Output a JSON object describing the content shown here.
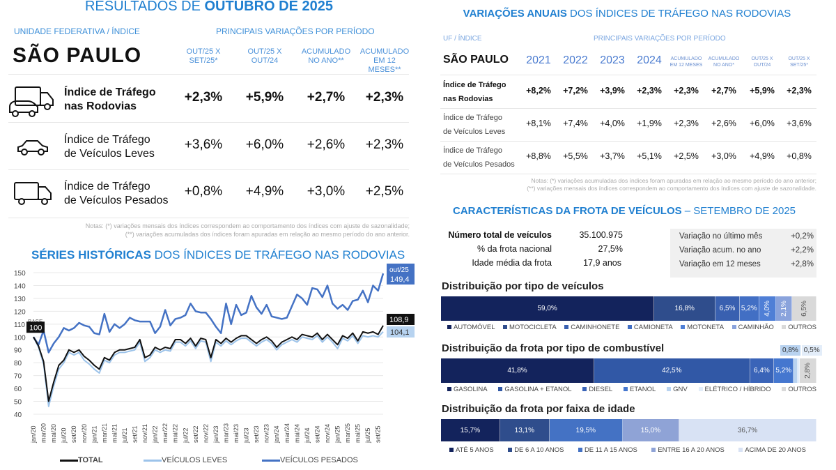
{
  "left": {
    "title_light": "RESULTADOS DE ",
    "title_bold": "OUTUBRO DE 2025",
    "header_uf": "UNIDADE FEDERATIVA / ÍNDICE",
    "header_periods": "PRINCIPAIS VARIAÇÕES POR PERÍODO",
    "state": "SÃO PAULO",
    "columns": [
      {
        "l1": "OUT/25 X",
        "l2": "SET/25*"
      },
      {
        "l1": "OUT/25 X",
        "l2": "OUT/24"
      },
      {
        "l1": "ACUMULADO",
        "l2": "NO ANO**"
      },
      {
        "l1": "ACUMULADO",
        "l2": "EM 12 MESES**"
      }
    ],
    "rows": [
      {
        "icon": "truck-car-icon",
        "l1": "Índice de Tráfego",
        "l2": "nas Rodovias",
        "values": [
          "+2,3%",
          "+5,9%",
          "+2,7%",
          "+2,3%"
        ]
      },
      {
        "icon": "car-icon",
        "l1": "Índice de Tráfego",
        "l2": "de Veículos Leves",
        "values": [
          "+3,6%",
          "+6,0%",
          "+2,6%",
          "+2,3%"
        ]
      },
      {
        "icon": "truck-icon",
        "l1": "Índice de Tráfego",
        "l2": "de Veículos Pesados",
        "values": [
          "+0,8%",
          "+4,9%",
          "+3,0%",
          "+2,5%"
        ]
      }
    ],
    "notes": [
      "Notas: (*) variações mensais dos índices correspondem ao comportamento dos índices com ajuste de sazonalidade;",
      "(**) variações acumuladas dos índices foram apuradas em relação ao mesmo período do ano anterior."
    ]
  },
  "chart_data": {
    "type": "line",
    "title_bold": "SÉRIES HISTÓRICAS",
    "title_light": " DOS ÍNDICES DE TRÁFEGO NAS RODOVIAS",
    "ylim": [
      40,
      150
    ],
    "yticks": [
      40,
      50,
      60,
      70,
      80,
      90,
      100,
      110,
      120,
      130,
      140,
      150
    ],
    "grid": true,
    "xtick_labels": [
      "jan/20",
      "mar/20",
      "mai/20",
      "jul/20",
      "set/20",
      "nov/20",
      "jan/21",
      "mar/21",
      "mai/21",
      "jul/21",
      "set/21",
      "nov/21",
      "jan/22",
      "mar/22",
      "mai/22",
      "jul/22",
      "set/22",
      "nov/22",
      "jan/23",
      "mar/23",
      "mai/23",
      "jul/23",
      "set/23",
      "nov/23",
      "jan/24",
      "mar/24",
      "mai/24",
      "jul/24",
      "set/24",
      "nov/24",
      "jan/25",
      "mar/25",
      "mai/25",
      "jul/25",
      "set/25"
    ],
    "x_range": "jan/20 – out/25 (monthly)",
    "base_label": "BASE",
    "base_value": "100",
    "end_label_pesados": "out/25",
    "end_values": {
      "pesados": "149,4",
      "total": "108,9",
      "leves": "104,1"
    },
    "legend_position": "bottom",
    "series": [
      {
        "name": "TOTAL",
        "color": "#111111",
        "values": [
          100,
          93,
          81,
          50,
          65,
          78,
          82,
          90,
          88,
          90,
          85,
          82,
          78,
          75,
          84,
          82,
          88,
          90,
          90,
          91,
          92,
          98,
          84,
          86,
          92,
          90,
          92,
          91,
          98,
          98,
          95,
          99,
          93,
          99,
          98,
          84,
          98,
          95,
          99,
          96,
          99,
          101,
          101,
          98,
          95,
          98,
          100,
          97,
          92,
          96,
          98,
          100,
          98,
          102,
          101,
          100,
          103,
          98,
          102,
          98,
          94,
          101,
          99,
          103,
          97,
          104,
          103,
          104,
          102,
          108.9
        ]
      },
      {
        "name": "VEÍCULOS LEVES",
        "color": "#9cc3ea",
        "values": [
          100,
          92,
          79,
          46,
          62,
          75,
          80,
          88,
          86,
          88,
          82,
          79,
          75,
          72,
          82,
          80,
          86,
          88,
          88,
          89,
          90,
          96,
          81,
          84,
          90,
          88,
          90,
          89,
          96,
          96,
          93,
          97,
          91,
          97,
          96,
          81,
          96,
          93,
          97,
          94,
          97,
          99,
          99,
          96,
          93,
          96,
          98,
          95,
          90,
          94,
          96,
          98,
          96,
          100,
          99,
          98,
          101,
          96,
          100,
          96,
          91,
          99,
          97,
          101,
          95,
          101,
          100,
          101,
          100,
          104.1
        ]
      },
      {
        "name": "VEÍCULOS PESADOS",
        "color": "#4472c4",
        "values": [
          100,
          94,
          105,
          88,
          95,
          100,
          107,
          105,
          107,
          111,
          109,
          108,
          103,
          102,
          118,
          104,
          110,
          107,
          110,
          115,
          113,
          112,
          112,
          112,
          103,
          108,
          121,
          109,
          114,
          115,
          117,
          126,
          120,
          119,
          119,
          114,
          108,
          103,
          126,
          110,
          125,
          117,
          119,
          132,
          123,
          118,
          125,
          116,
          115,
          114,
          115,
          124,
          133,
          130,
          125,
          138,
          137,
          131,
          140,
          126,
          122,
          125,
          121,
          128,
          129,
          136,
          127,
          140,
          136,
          149.4
        ]
      }
    ]
  },
  "right": {
    "title_bold": "VARIAÇÕES ANUAIS",
    "title_light": " DOS ÍNDICES DE TRÁFEGO NAS RODOVIAS",
    "header_uf": "UF / ÍNDICE",
    "header_periods": "PRINCIPAIS VARIAÇÕES POR PERÍODO",
    "state": "SÃO PAULO",
    "years": [
      "2021",
      "2022",
      "2023",
      "2024"
    ],
    "small_cols": [
      {
        "l1": "ACUMULADO",
        "l2": "EM 12 MESES"
      },
      {
        "l1": "ACUMULADO",
        "l2": "NO ANO*"
      },
      {
        "l1": "OUT/25 X",
        "l2": "OUT/24"
      },
      {
        "l1": "OUT/25 X",
        "l2": "SET/25*"
      }
    ],
    "rows": [
      {
        "l1": "Índice de Tráfego",
        "l2": "nas Rodovias",
        "values": [
          "+8,2%",
          "+7,2%",
          "+3,9%",
          "+2,3%",
          "+2,3%",
          "+2,7%",
          "+5,9%",
          "+2,3%"
        ]
      },
      {
        "l1": "Índice de Tráfego",
        "l2": "de Veículos Leves",
        "values": [
          "+8,1%",
          "+7,4%",
          "+4,0%",
          "+1,9%",
          "+2,3%",
          "+2,6%",
          "+6,0%",
          "+3,6%"
        ]
      },
      {
        "l1": "Índice de Tráfego",
        "l2": "de Veículos Pesados",
        "values": [
          "+8,8%",
          "+5,5%",
          "+3,7%",
          "+5,1%",
          "+2,5%",
          "+3,0%",
          "+4,9%",
          "+0,8%"
        ]
      }
    ],
    "notes": [
      "Notas: (*) variações acumuladas dos índices foram apuradas em relação ao mesmo período do ano anterior;",
      "(**) variações mensais dos índices correspondem ao comportamento dos índices com ajuste de sazonalidade."
    ]
  },
  "fleet": {
    "title_bold": "CARACTERÍSTICAS DA FROTA DE VEÍCULOS",
    "title_light": " – SETEMBRO DE 2025",
    "stats": [
      {
        "label": "Número total de veículos",
        "value": "35.100.975"
      },
      {
        "label": "% da frota nacional",
        "value": "27,5%"
      },
      {
        "label": "Idade média da frota",
        "value": "17,9 anos"
      }
    ],
    "variations": [
      {
        "label": "Variação no último mês",
        "value": "+0,2%"
      },
      {
        "label": "Variação acum. no ano",
        "value": "+2,2%"
      },
      {
        "label": "Variação em 12 meses",
        "value": "+2,8%"
      }
    ],
    "distributions": [
      {
        "title": "Distribuição por tipo de veículos",
        "segments": [
          {
            "label": "AUTOMÓVEL",
            "value": 59.0,
            "text": "59,0%",
            "color": "#13235c"
          },
          {
            "label": "MOTOCICLETA",
            "value": 16.8,
            "text": "16,8%",
            "color": "#2f4d8c"
          },
          {
            "label": "CAMINHONETE",
            "value": 6.5,
            "text": "6,5%",
            "color": "#3960b0"
          },
          {
            "label": "CAMIONETA",
            "value": 5.2,
            "text": "5,2%",
            "color": "#426fc4"
          },
          {
            "label": "MOTONETA",
            "value": 4.0,
            "text": "4,0%",
            "color": "#4f7fd6",
            "vertical": true
          },
          {
            "label": "CAMINHÃO",
            "value": 2.1,
            "text": "2,1%",
            "color": "#8aa3dc",
            "vertical": true
          },
          {
            "label": "OUTROS",
            "value": 6.5,
            "text": "6,5%",
            "color": "#d9d9d9",
            "vertical": true,
            "dark": true
          }
        ]
      },
      {
        "title": "Distribuição da frota por tipo de combustível",
        "segments": [
          {
            "label": "GASOLINA",
            "value": 41.8,
            "text": "41,8%",
            "color": "#13235c"
          },
          {
            "label": "GASOLINA + ETANOL",
            "value": 42.5,
            "text": "42,5%",
            "color": "#3158a6"
          },
          {
            "label": "DIESEL",
            "value": 6.4,
            "text": "6,4%",
            "color": "#3a64b8"
          },
          {
            "label": "ETANOL",
            "value": 5.2,
            "text": "5,2%",
            "color": "#4577cf"
          },
          {
            "label": "GNV",
            "value": 0.8,
            "text": "0,8%",
            "color": "#b9d3f0",
            "outside": true
          },
          {
            "label": "ELÉTRICO / HÍBRIDO",
            "value": 0.5,
            "text": "0,5%",
            "color": "#e3edf9",
            "outside": true
          },
          {
            "label": "OUTROS",
            "value": 2.8,
            "text": "2,8%",
            "color": "#d9d9d9",
            "vertical": true,
            "dark": true
          }
        ]
      },
      {
        "title": "Distribuição da frota por faixa de idade",
        "segments": [
          {
            "label": "ATÉ 5 ANOS",
            "value": 15.7,
            "text": "15,7%",
            "color": "#13235c"
          },
          {
            "label": "DE 6 A 10 ANOS",
            "value": 13.1,
            "text": "13,1%",
            "color": "#2f4d8c"
          },
          {
            "label": "DE 11 A 15 ANOS",
            "value": 19.5,
            "text": "19,5%",
            "color": "#4472c4"
          },
          {
            "label": "ENTRE 16 A 20 ANOS",
            "value": 15.0,
            "text": "15,0%",
            "color": "#8fa3d6"
          },
          {
            "label": "ACIMA DE 20 ANOS",
            "value": 36.7,
            "text": "36,7%",
            "color": "#d8e2f4",
            "dark": true
          }
        ]
      }
    ]
  }
}
